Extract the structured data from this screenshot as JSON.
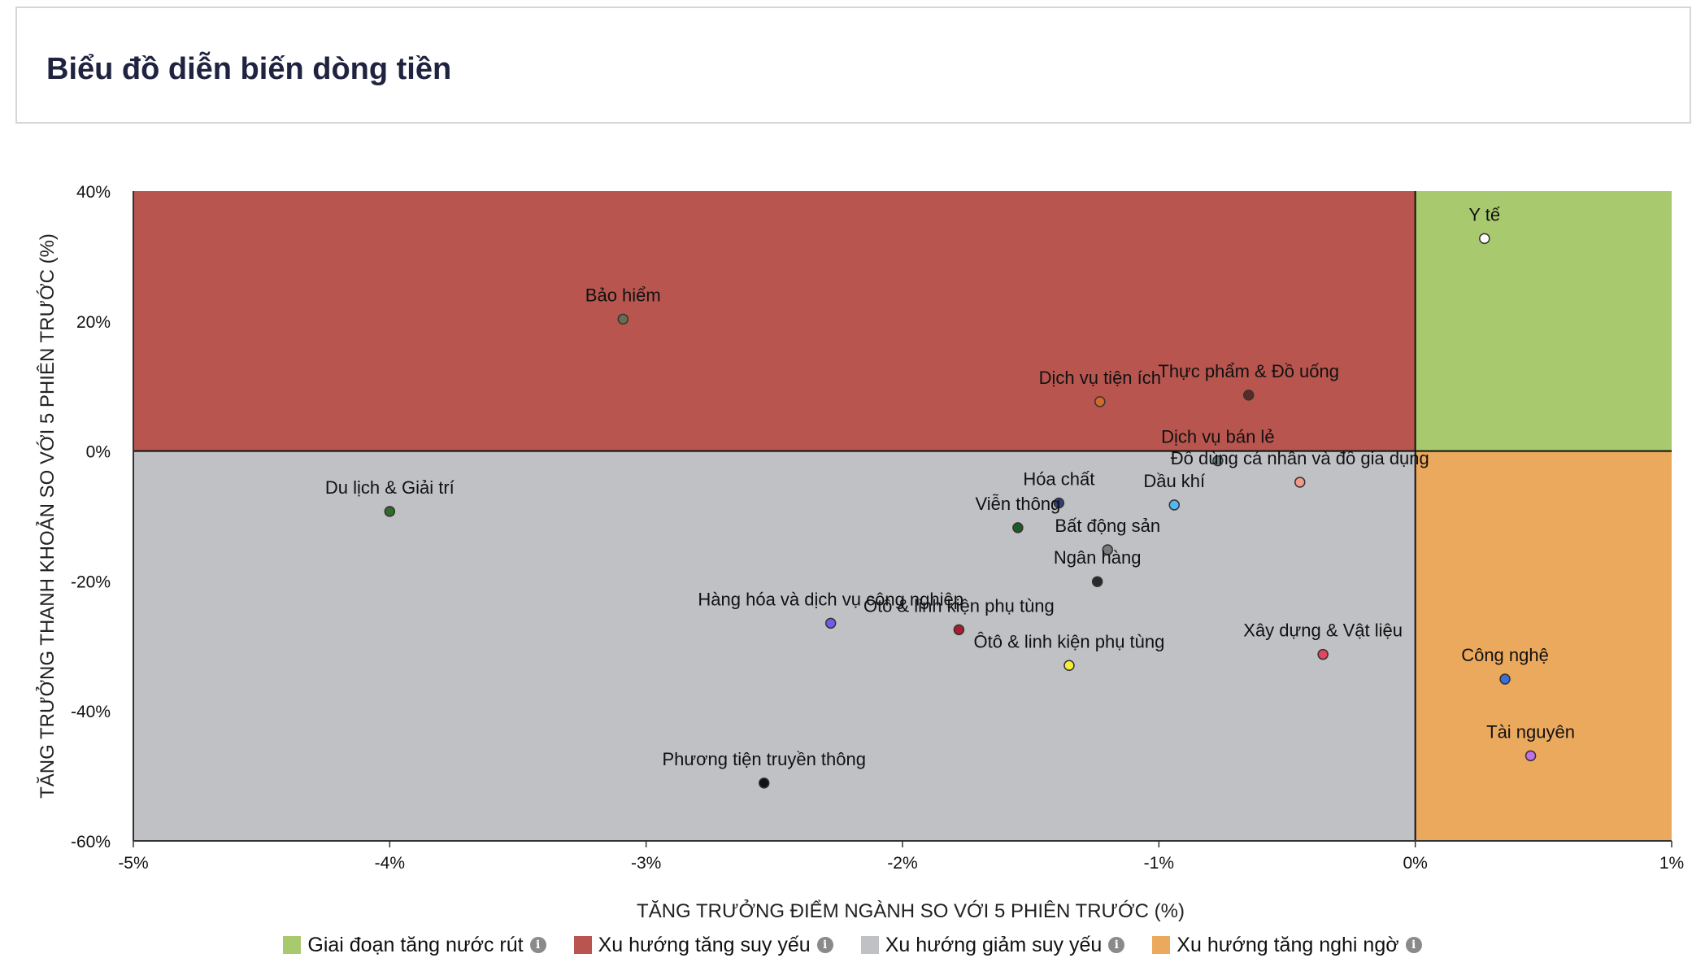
{
  "header": {
    "title": "Biểu đồ diễn biến dòng tiền"
  },
  "chart_data": {
    "type": "scatter",
    "title": "Biểu đồ diễn biến dòng tiền",
    "xlabel": "TĂNG TRƯỞNG ĐIỂM NGÀNH SO VỚI 5 PHIÊN TRƯỚC (%)",
    "ylabel": "TĂNG TRƯỞNG THANH KHOẢN SO VỚI 5 PHIÊN TRƯỚC (%)",
    "xlim": [
      -5,
      1
    ],
    "ylim": [
      -60,
      40
    ],
    "x_ticks": [
      -5,
      -4,
      -3,
      -2,
      -1,
      0,
      1
    ],
    "y_ticks": [
      40,
      20,
      0,
      -20,
      -40,
      -60
    ],
    "x_tick_labels": [
      "-5%",
      "-4%",
      "-3%",
      "-2%",
      "-1%",
      "0%",
      "1%"
    ],
    "y_tick_labels": [
      "40%",
      "20%",
      "0%",
      "-20%",
      "-40%",
      "-60%"
    ],
    "quadrants": [
      {
        "name": "Giai đoạn tăng nước rút",
        "color": "#a9c96f",
        "x": [
          0,
          1
        ],
        "y": [
          0,
          40
        ]
      },
      {
        "name": "Xu hướng tăng suy yếu",
        "color": "#b8554f",
        "x": [
          -5,
          0
        ],
        "y": [
          0,
          40
        ]
      },
      {
        "name": "Xu hướng giảm suy yếu",
        "color": "#c0c1c5",
        "x": [
          -5,
          0
        ],
        "y": [
          -60,
          0
        ]
      },
      {
        "name": "Xu hướng tăng nghi ngờ",
        "color": "#eba95d",
        "x": [
          0,
          1
        ],
        "y": [
          -60,
          0
        ]
      }
    ],
    "points": [
      {
        "label": "Y tế",
        "x": 0.27,
        "y": 32.7,
        "color": "#ffffff"
      },
      {
        "label": "Bảo hiểm",
        "x": -3.09,
        "y": 20.3,
        "color": "#6b6a52"
      },
      {
        "label": "Dịch vụ tiện ích",
        "x": -1.23,
        "y": 7.6,
        "color": "#d36a2c"
      },
      {
        "label": "Thực phẩm & Đồ uống",
        "x": -0.65,
        "y": 8.6,
        "color": "#5a2a26"
      },
      {
        "label": "Dịch vụ bán lẻ",
        "x": -0.77,
        "y": -1.5,
        "color": "#6a7f8c"
      },
      {
        "label": "Đồ dùng cá nhân và đồ gia dụng",
        "x": -0.45,
        "y": -4.8,
        "color": "#f29a8a"
      },
      {
        "label": "Du lịch & Giải trí",
        "x": -4.0,
        "y": -9.3,
        "color": "#2f6b2a"
      },
      {
        "label": "Hóa chất",
        "x": -1.39,
        "y": -8.0,
        "color": "#2f3e7a"
      },
      {
        "label": "Dầu khí",
        "x": -0.94,
        "y": -8.3,
        "color": "#52b8f0"
      },
      {
        "label": "Viễn thông",
        "x": -1.55,
        "y": -11.8,
        "color": "#1e5a22"
      },
      {
        "label": "Bất động sản",
        "x": -1.2,
        "y": -15.2,
        "color": "#7a7a7a"
      },
      {
        "label": "Ngân hàng",
        "x": -1.24,
        "y": -20.1,
        "color": "#2a2a2a"
      },
      {
        "label": "Hàng hóa và dịch vụ công nghiệp",
        "x": -2.28,
        "y": -26.5,
        "color": "#6a5fe8"
      },
      {
        "label": "Xây dựng & Vật liệu",
        "x": -0.36,
        "y": -31.3,
        "color": "#e2455e"
      },
      {
        "label": "Ôtô & linh kiện phụ tùng",
        "x": -1.78,
        "y": -27.5,
        "color": "#a81d2c"
      },
      {
        "label": "Ôtô & linh kiện phụ tùng",
        "x": -1.35,
        "y": -33.0,
        "color": "#f2ef36"
      },
      {
        "label": "Công nghệ",
        "x": 0.35,
        "y": -35.1,
        "color": "#3a6fd4"
      },
      {
        "label": "Tài nguyên",
        "x": 0.45,
        "y": -46.9,
        "color": "#c070e8"
      },
      {
        "label": "Phương tiện truyền thông",
        "x": -2.54,
        "y": -51.1,
        "color": "#111111"
      }
    ]
  },
  "legend": {
    "items": [
      {
        "label": "Giai đoạn tăng nước rút",
        "color": "#a9c96f"
      },
      {
        "label": "Xu hướng tăng suy yếu",
        "color": "#b8554f"
      },
      {
        "label": "Xu hướng giảm suy yếu",
        "color": "#c0c1c5"
      },
      {
        "label": "Xu hướng tăng nghi ngờ",
        "color": "#eba95d"
      }
    ],
    "info_icon": "info-icon"
  }
}
